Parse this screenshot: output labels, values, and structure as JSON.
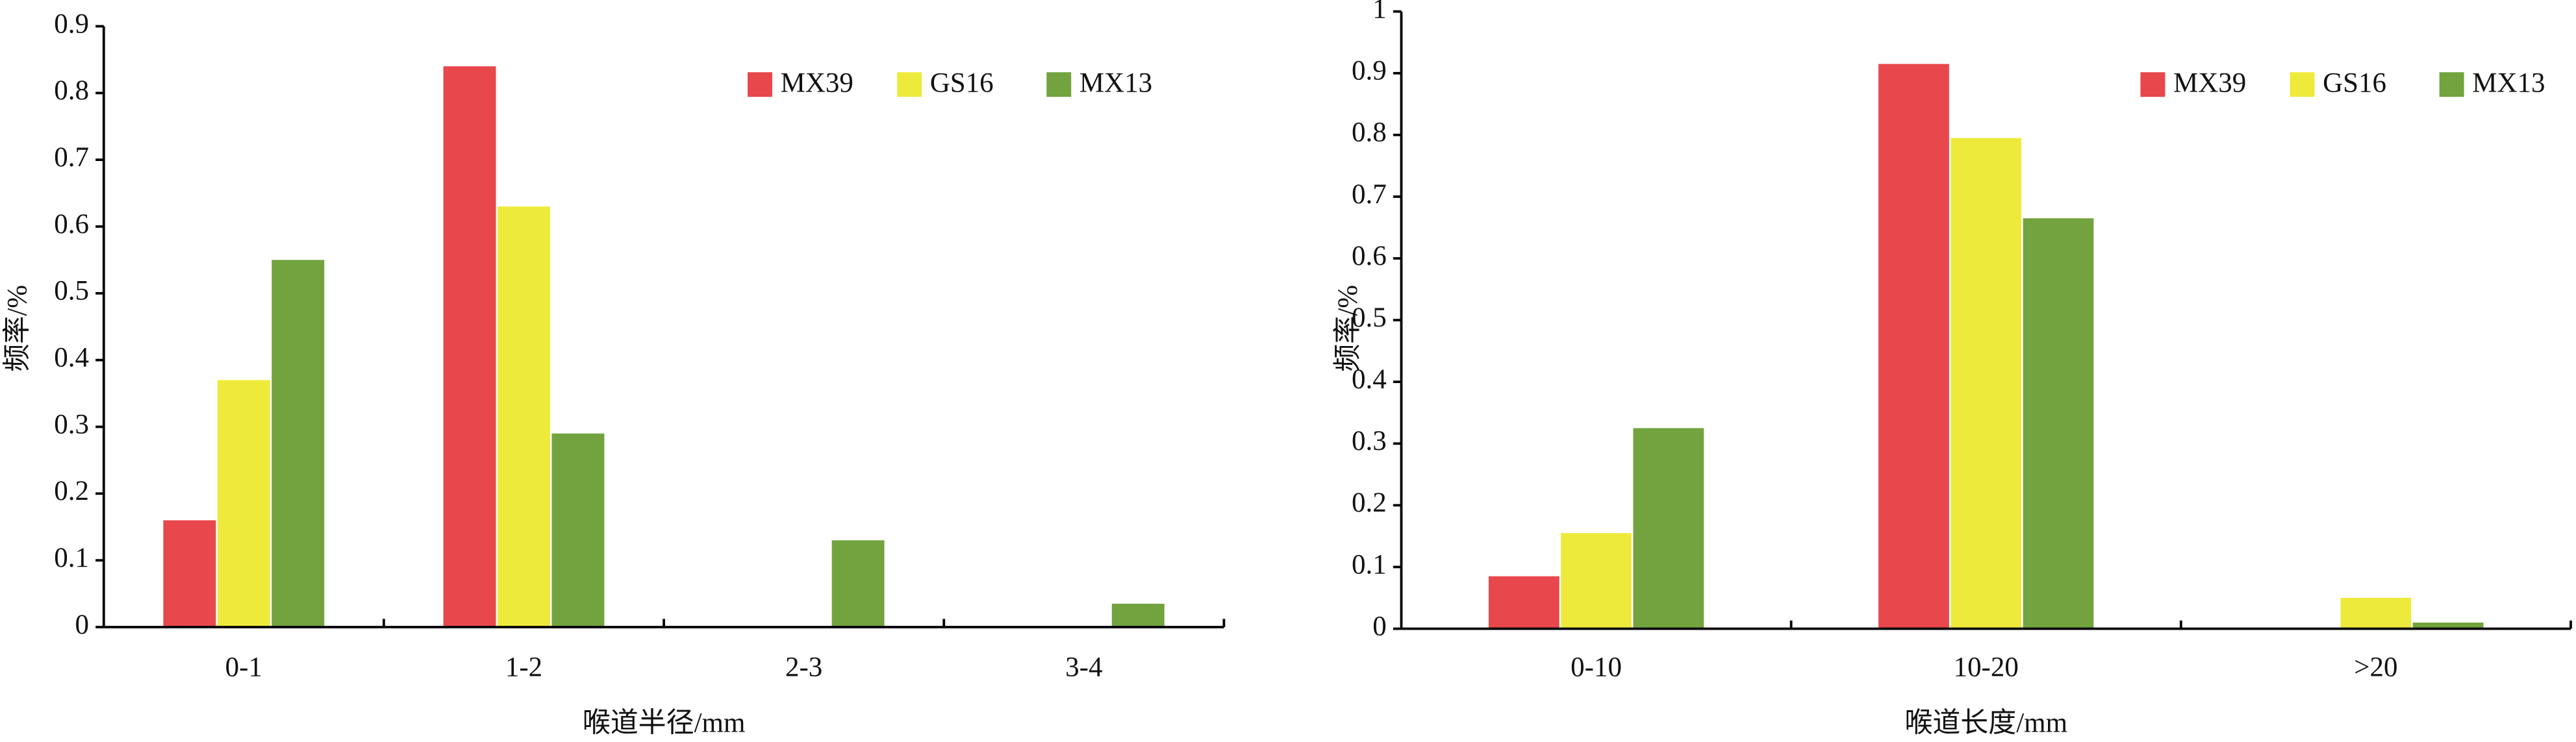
{
  "chart_data": [
    {
      "type": "bar",
      "x_label": "喉道半径/mm",
      "y_label": "频率/%",
      "categories": [
        "0-1",
        "1-2",
        "2-3",
        "3-4"
      ],
      "series": [
        {
          "name": "MX39",
          "color": "#e8474b",
          "values": [
            0.16,
            0.84,
            0,
            0
          ]
        },
        {
          "name": "GS16",
          "color": "#eeea3c",
          "values": [
            0.37,
            0.63,
            0,
            0
          ]
        },
        {
          "name": "MX13",
          "color": "#72a33f",
          "values": [
            0.55,
            0.29,
            0.13,
            0.035
          ]
        }
      ],
      "ylim": [
        0,
        0.9
      ],
      "yticks": [
        0,
        0.1,
        0.2,
        0.3,
        0.4,
        0.5,
        0.6,
        0.7,
        0.8,
        0.9
      ],
      "legend": "top-right"
    },
    {
      "type": "bar",
      "x_label": "喉道长度/mm",
      "y_label": "频率/%",
      "categories": [
        "0-10",
        "10-20",
        ">20"
      ],
      "series": [
        {
          "name": "MX39",
          "color": "#e8474b",
          "values": [
            0.085,
            0.915,
            0
          ]
        },
        {
          "name": "GS16",
          "color": "#eeea3c",
          "values": [
            0.155,
            0.795,
            0.05
          ]
        },
        {
          "name": "MX13",
          "color": "#72a33f",
          "values": [
            0.325,
            0.665,
            0.01
          ]
        }
      ],
      "ylim": [
        0,
        1
      ],
      "yticks": [
        0,
        0.1,
        0.2,
        0.3,
        0.4,
        0.5,
        0.6,
        0.7,
        0.8,
        0.9,
        1
      ],
      "legend": "top-right"
    }
  ]
}
